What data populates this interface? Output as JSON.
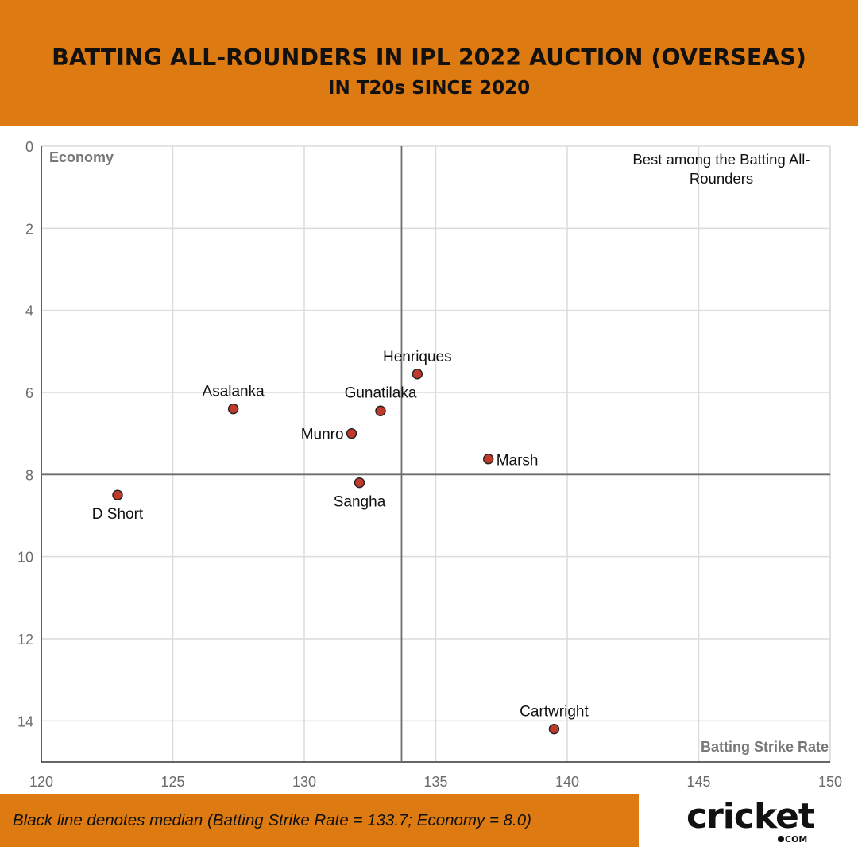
{
  "header": {
    "title": "BATTING ALL-ROUNDERS IN IPL 2022 AUCTION (OVERSEAS)",
    "subtitle": "IN T20s SINCE 2020"
  },
  "footer": {
    "note": "Black line denotes median (Batting Strike Rate = 133.7; Economy = 8.0)",
    "logo_text": "cricket",
    "logo_suffix": "COM"
  },
  "colors": {
    "header_bg": "#de7a12",
    "point_fill": "#c0392b",
    "median_line": "#6e6e6e",
    "grid": "#dcdcdc"
  },
  "chart_data": {
    "type": "scatter",
    "xlabel": "Batting Strike Rate",
    "ylabel": "Economy",
    "xlim": [
      120,
      150
    ],
    "ylim": [
      0,
      15
    ],
    "y_inverted": true,
    "xticks": [
      120,
      125,
      130,
      135,
      140,
      145,
      150
    ],
    "yticks": [
      0,
      2,
      4,
      6,
      8,
      10,
      12,
      14
    ],
    "grid": true,
    "median": {
      "x": 133.7,
      "y": 8.0
    },
    "quadrant_annotation": "Best among the Batting All-Rounders",
    "points": [
      {
        "name": "Henriques",
        "x": 134.3,
        "y": 5.55
      },
      {
        "name": "Asalanka",
        "x": 127.3,
        "y": 6.4
      },
      {
        "name": "Gunatilaka",
        "x": 132.9,
        "y": 6.45
      },
      {
        "name": "Munro",
        "x": 131.8,
        "y": 7.0
      },
      {
        "name": "Marsh",
        "x": 137.0,
        "y": 7.62
      },
      {
        "name": "Sangha",
        "x": 132.1,
        "y": 8.2
      },
      {
        "name": "D Short",
        "x": 122.9,
        "y": 8.5
      },
      {
        "name": "Cartwright",
        "x": 139.5,
        "y": 14.2
      }
    ]
  }
}
